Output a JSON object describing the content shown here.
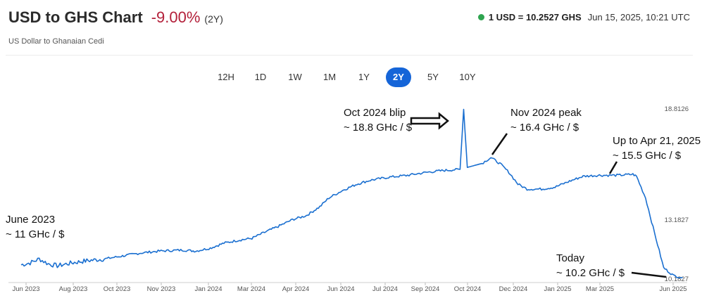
{
  "header": {
    "title": "USD to GHS Chart",
    "change": "-9.00%",
    "period": "(2Y)",
    "subtitle": "US Dollar to Ghanaian Cedi",
    "rate": "1 USD = 10.2527 GHS",
    "timestamp": "Jun 15, 2025, 10:21 UTC",
    "status_color": "#2ea44f"
  },
  "range_tabs": [
    "12H",
    "1D",
    "1W",
    "1M",
    "1Y",
    "2Y",
    "5Y",
    "10Y"
  ],
  "active_range": "2Y",
  "colors": {
    "line": "#1a6fd0",
    "change_negative": "#b3203a",
    "active_tab": "#1565d8"
  },
  "chart_data": {
    "type": "line",
    "title": "",
    "xlabel": "",
    "ylabel": "",
    "x_ticks": [
      "Jun 2023",
      "Aug 2023",
      "Oct 2023",
      "Nov 2023",
      "Jan 2024",
      "Mar 2024",
      "Apr 2024",
      "Jun 2024",
      "Jul 2024",
      "Sep 2024",
      "Oct 2024",
      "Dec 2024",
      "Jan 2025",
      "Mar 2025",
      "Jun 2025"
    ],
    "y_ticks": [
      "18.8126",
      "13.1827",
      "10.1827"
    ],
    "series": [
      {
        "points": [
          [
            "2023-06-15",
            10.9
          ],
          [
            "2023-06-25",
            11.0
          ],
          [
            "2023-07-05",
            11.2
          ],
          [
            "2023-07-15",
            10.95
          ],
          [
            "2023-07-25",
            10.85
          ],
          [
            "2023-08-10",
            11.0
          ],
          [
            "2023-08-25",
            11.1
          ],
          [
            "2023-09-15",
            11.2
          ],
          [
            "2023-10-05",
            11.35
          ],
          [
            "2023-10-25",
            11.5
          ],
          [
            "2023-11-15",
            11.6
          ],
          [
            "2023-12-10",
            11.65
          ],
          [
            "2023-12-25",
            11.6
          ],
          [
            "2024-01-10",
            11.75
          ],
          [
            "2024-01-25",
            12.0
          ],
          [
            "2024-02-10",
            12.15
          ],
          [
            "2024-02-25",
            12.25
          ],
          [
            "2024-03-10",
            12.55
          ],
          [
            "2024-03-25",
            12.85
          ],
          [
            "2024-04-10",
            13.2
          ],
          [
            "2024-04-25",
            13.4
          ],
          [
            "2024-05-10",
            13.85
          ],
          [
            "2024-05-20",
            14.3
          ],
          [
            "2024-06-05",
            14.7
          ],
          [
            "2024-06-20",
            15.0
          ],
          [
            "2024-07-05",
            15.2
          ],
          [
            "2024-07-25",
            15.35
          ],
          [
            "2024-08-15",
            15.45
          ],
          [
            "2024-09-05",
            15.6
          ],
          [
            "2024-09-25",
            15.7
          ],
          [
            "2024-10-12",
            15.75
          ],
          [
            "2024-10-16",
            18.8
          ],
          [
            "2024-10-20",
            15.85
          ],
          [
            "2024-11-05",
            16.05
          ],
          [
            "2024-11-15",
            16.35
          ],
          [
            "2024-11-25",
            16.05
          ],
          [
            "2024-12-05",
            15.6
          ],
          [
            "2024-12-15",
            15.0
          ],
          [
            "2024-12-25",
            14.75
          ],
          [
            "2025-01-10",
            14.75
          ],
          [
            "2025-01-25",
            14.85
          ],
          [
            "2025-02-10",
            15.15
          ],
          [
            "2025-02-25",
            15.4
          ],
          [
            "2025-03-15",
            15.45
          ],
          [
            "2025-04-05",
            15.45
          ],
          [
            "2025-04-21",
            15.5
          ],
          [
            "2025-04-25",
            15.4
          ],
          [
            "2025-05-05",
            14.3
          ],
          [
            "2025-05-15",
            12.5
          ],
          [
            "2025-05-25",
            10.75
          ],
          [
            "2025-06-05",
            10.35
          ],
          [
            "2025-06-15",
            10.25
          ]
        ]
      }
    ],
    "annotations": [
      {
        "lines": [
          "Oct 2024 blip",
          "~ 18.8 GHc / $"
        ],
        "date": "2024-10-16",
        "value": 18.8
      },
      {
        "lines": [
          "Nov 2024 peak",
          "~ 16.4 GHc / $"
        ],
        "date": "2024-11-15",
        "value": 16.4
      },
      {
        "lines": [
          "Up to Apr 21, 2025",
          "~ 15.5 GHc / $"
        ],
        "date": "2025-04-21",
        "value": 15.5
      },
      {
        "lines": [
          "June 2023",
          "~ 11 GHc / $"
        ],
        "date": "2023-06-15",
        "value": 11.0
      },
      {
        "lines": [
          "Today",
          "~ 10.2 GHc / $"
        ],
        "date": "2025-06-15",
        "value": 10.2
      }
    ],
    "grid": false,
    "legend": "none"
  }
}
